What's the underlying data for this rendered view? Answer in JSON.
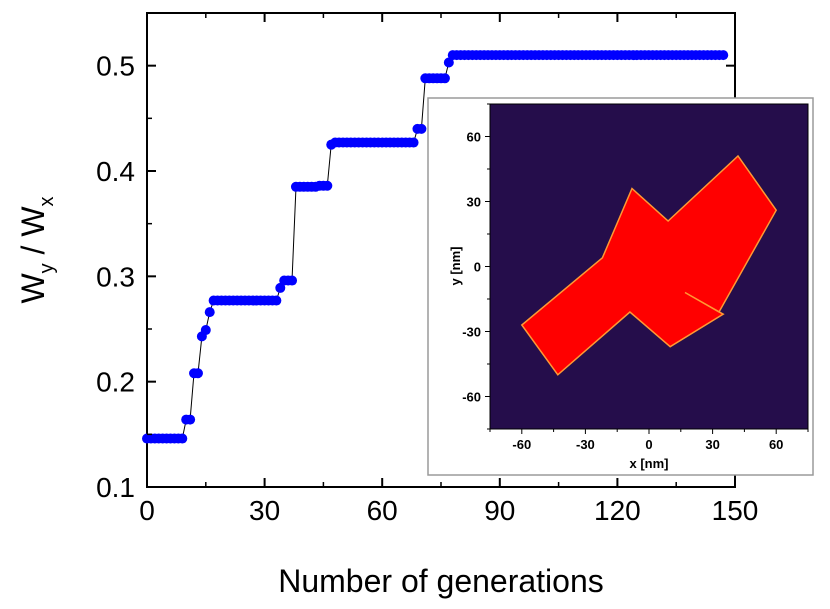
{
  "chart_data": [
    {
      "type": "scatter",
      "title": "",
      "xlabel": "Number of generations",
      "ylabel_parts": [
        "W",
        "y",
        " / W",
        "x"
      ],
      "xlim": [
        0,
        150
      ],
      "ylim": [
        0.1,
        0.55
      ],
      "xticks": [
        0,
        30,
        60,
        90,
        120,
        150
      ],
      "xtick_labels": [
        "0",
        "30",
        "60",
        "90",
        "120",
        "150"
      ],
      "yticks": [
        0.1,
        0.2,
        0.3,
        0.4,
        0.5
      ],
      "ytick_labels": [
        "0.1",
        "0.2",
        "0.3",
        "0.4",
        "0.5"
      ],
      "grid": false,
      "marker_color": "#0000ff",
      "line_color": "#000000",
      "series": [
        {
          "name": "Wy/Wx",
          "x": [
            0,
            1,
            2,
            3,
            4,
            5,
            6,
            7,
            8,
            9,
            10,
            11,
            12,
            13,
            14,
            15,
            16,
            17,
            18,
            19,
            20,
            21,
            22,
            23,
            24,
            25,
            26,
            27,
            28,
            29,
            30,
            31,
            32,
            33,
            34,
            35,
            36,
            37,
            38,
            39,
            40,
            41,
            42,
            43,
            44,
            45,
            46,
            47,
            48,
            49,
            50,
            51,
            52,
            53,
            54,
            55,
            56,
            57,
            58,
            59,
            60,
            61,
            62,
            63,
            64,
            65,
            66,
            67,
            68,
            69,
            70,
            71,
            72,
            73,
            74,
            75,
            76,
            77,
            78,
            79,
            80,
            81,
            82,
            83,
            84,
            85,
            86,
            87,
            88,
            89,
            90,
            91,
            92,
            93,
            94,
            95,
            96,
            97,
            98,
            99,
            100,
            101,
            102,
            103,
            104,
            105,
            106,
            107,
            108,
            109,
            110,
            111,
            112,
            113,
            114,
            115,
            116,
            117,
            118,
            119,
            120,
            121,
            122,
            123,
            124,
            125,
            126,
            127,
            128,
            129,
            130,
            131,
            132,
            133,
            134,
            135,
            136,
            137,
            138,
            139,
            140,
            141,
            142,
            143,
            144,
            145,
            146,
            147
          ],
          "y": [
            0.146,
            0.146,
            0.146,
            0.146,
            0.146,
            0.146,
            0.146,
            0.146,
            0.146,
            0.146,
            0.164,
            0.164,
            0.208,
            0.208,
            0.243,
            0.249,
            0.266,
            0.277,
            0.277,
            0.277,
            0.277,
            0.277,
            0.277,
            0.277,
            0.277,
            0.277,
            0.277,
            0.277,
            0.277,
            0.277,
            0.277,
            0.277,
            0.277,
            0.277,
            0.289,
            0.296,
            0.296,
            0.296,
            0.385,
            0.385,
            0.385,
            0.385,
            0.385,
            0.385,
            0.386,
            0.386,
            0.386,
            0.425,
            0.427,
            0.427,
            0.427,
            0.427,
            0.427,
            0.427,
            0.427,
            0.427,
            0.427,
            0.427,
            0.427,
            0.427,
            0.427,
            0.427,
            0.427,
            0.427,
            0.427,
            0.427,
            0.427,
            0.427,
            0.427,
            0.44,
            0.44,
            0.488,
            0.488,
            0.488,
            0.488,
            0.488,
            0.488,
            0.503,
            0.51,
            0.51,
            0.51,
            0.51,
            0.51,
            0.51,
            0.51,
            0.51,
            0.51,
            0.51,
            0.51,
            0.51,
            0.51,
            0.51,
            0.51,
            0.51,
            0.51,
            0.51,
            0.51,
            0.51,
            0.51,
            0.51,
            0.51,
            0.51,
            0.51,
            0.51,
            0.51,
            0.51,
            0.51,
            0.51,
            0.51,
            0.51,
            0.51,
            0.51,
            0.51,
            0.51,
            0.51,
            0.51,
            0.51,
            0.51,
            0.51,
            0.51,
            0.51,
            0.51,
            0.51,
            0.51,
            0.51,
            0.51,
            0.51,
            0.51,
            0.51,
            0.51,
            0.51,
            0.51,
            0.51,
            0.51,
            0.51,
            0.51,
            0.51,
            0.51,
            0.51,
            0.51,
            0.51,
            0.51,
            0.51,
            0.51,
            0.51,
            0.51,
            0.51,
            0.51
          ]
        }
      ]
    },
    {
      "type": "heatmap",
      "title": "",
      "xlabel": "x [nm]",
      "ylabel": "y [nm]",
      "xlim": [
        -75,
        75
      ],
      "ylim": [
        -75,
        75
      ],
      "xticks": [
        -60,
        -30,
        0,
        30,
        60
      ],
      "xtick_labels": [
        "-60",
        "-30",
        "0",
        "30",
        "60"
      ],
      "yticks": [
        -60,
        -30,
        0,
        30,
        60
      ],
      "ytick_labels": [
        "-60",
        "-30",
        "0",
        "30",
        "60"
      ],
      "background_color": "#250d4b",
      "shape_color": "#ff0000",
      "shape_edge_color": "#ff9933",
      "shape": "cross",
      "cross_polygon": [
        [
          -8,
          36
        ],
        [
          9,
          21
        ],
        [
          42,
          51
        ],
        [
          60,
          26
        ],
        [
          33,
          -21
        ],
        [
          17,
          -12
        ],
        [
          35,
          -22
        ],
        [
          10,
          -37
        ],
        [
          -9,
          -21
        ],
        [
          -43,
          -50
        ],
        [
          -60,
          -27
        ],
        [
          -22,
          4
        ]
      ]
    }
  ]
}
